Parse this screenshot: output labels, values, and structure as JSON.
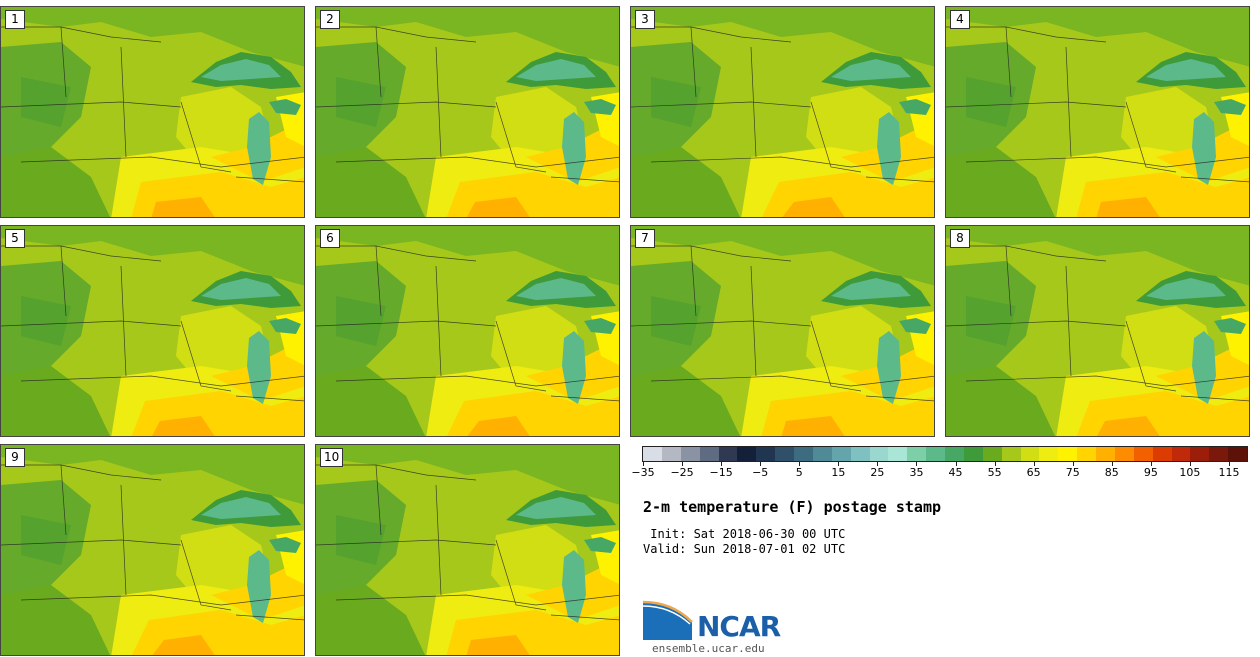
{
  "figure": {
    "title": "2-m temperature (F) postage stamp",
    "init": " Init: Sat 2018-06-30 00 UTC",
    "valid": "Valid: Sun 2018-07-01 02 UTC"
  },
  "members": [
    "1",
    "2",
    "3",
    "4",
    "5",
    "6",
    "7",
    "8",
    "9",
    "10"
  ],
  "colorbar": {
    "ticks": [
      "−35",
      "−25",
      "−15",
      "−5",
      "5",
      "15",
      "25",
      "35",
      "45",
      "55",
      "65",
      "75",
      "85",
      "95",
      "105",
      "115"
    ],
    "colors": [
      "#d9dee6",
      "#b3b8c2",
      "#8a93a3",
      "#5f6b80",
      "#2f3a52",
      "#14203a",
      "#1f3550",
      "#2f5068",
      "#3d6b80",
      "#4f8a96",
      "#64a5ac",
      "#7fc0c0",
      "#9ad8cf",
      "#a9e6d6",
      "#7ccfa6",
      "#5cb98a",
      "#47a866",
      "#3f9a3a",
      "#6aaa1e",
      "#a6c81a",
      "#d2de14",
      "#eeec10",
      "#fff200",
      "#ffd400",
      "#ffb000",
      "#ff8c00",
      "#f26000",
      "#dc3c00",
      "#c02a0a",
      "#9c1e0a",
      "#7a180c",
      "#5c1208"
    ]
  },
  "logo": {
    "name": "NCAR",
    "url": "ensemble.ucar.edu"
  }
}
